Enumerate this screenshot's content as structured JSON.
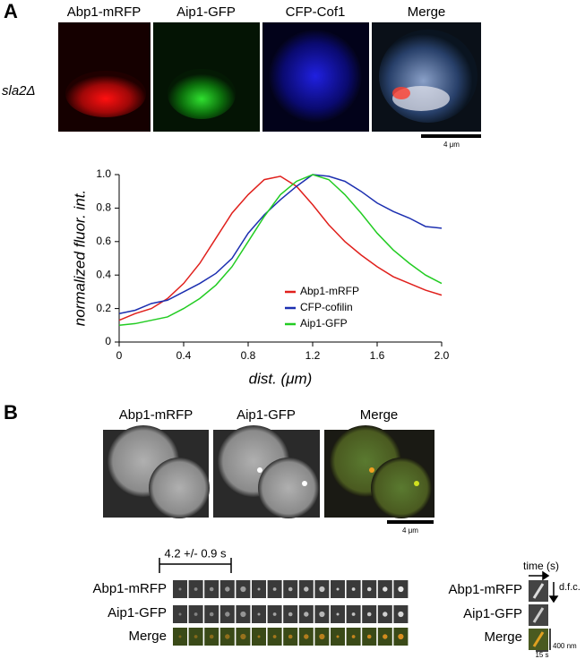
{
  "panel_a": {
    "label": "A",
    "columns": [
      "Abp1-mRFP",
      "Aip1-GFP",
      "CFP-Cof1",
      "Merge"
    ],
    "row_label": "sla2Δ",
    "scale_bar": "4 μm"
  },
  "chart_data": {
    "type": "line",
    "xlabel": "dist. (μm)",
    "ylabel": "normalized fluor. int.",
    "x": [
      0,
      0.1,
      0.2,
      0.3,
      0.4,
      0.5,
      0.6,
      0.7,
      0.8,
      0.9,
      1.0,
      1.1,
      1.2,
      1.3,
      1.4,
      1.5,
      1.6,
      1.7,
      1.8,
      1.9,
      2.0
    ],
    "series": [
      {
        "name": "Abp1-mRFP",
        "color": "#e0201c",
        "values": [
          0.13,
          0.17,
          0.2,
          0.26,
          0.35,
          0.47,
          0.62,
          0.77,
          0.88,
          0.97,
          0.99,
          0.93,
          0.82,
          0.7,
          0.6,
          0.52,
          0.45,
          0.39,
          0.35,
          0.31,
          0.28
        ]
      },
      {
        "name": "CFP-cofilin",
        "color": "#1c2fb0",
        "values": [
          0.17,
          0.19,
          0.23,
          0.25,
          0.3,
          0.35,
          0.41,
          0.5,
          0.65,
          0.76,
          0.85,
          0.93,
          1.0,
          0.99,
          0.96,
          0.9,
          0.83,
          0.78,
          0.74,
          0.69,
          0.68
        ]
      },
      {
        "name": "Aip1-GFP",
        "color": "#22cc22",
        "values": [
          0.1,
          0.11,
          0.13,
          0.15,
          0.2,
          0.26,
          0.34,
          0.45,
          0.6,
          0.75,
          0.88,
          0.96,
          1.0,
          0.97,
          0.88,
          0.77,
          0.65,
          0.55,
          0.47,
          0.4,
          0.35
        ]
      }
    ],
    "xlim": [
      0,
      2
    ],
    "xticks": [
      0,
      0.4,
      0.8,
      1.2,
      1.6,
      {
        "value": 2,
        "label": "2.0"
      }
    ],
    "ylim": [
      0,
      1
    ],
    "yticks": [
      0,
      0.2,
      0.4,
      0.6,
      0.8,
      {
        "value": 1,
        "label": "1.0"
      }
    ],
    "legend": "lower right"
  },
  "panel_b": {
    "label": "B",
    "columns": [
      "Abp1-mRFP",
      "Aip1-GFP",
      "Merge"
    ],
    "scale_bar": "4 μm",
    "interval": "4.2 +/- 0.9 s",
    "rows": [
      "Abp1-mRFP",
      "Aip1-GFP",
      "Merge"
    ],
    "kymo_rows": [
      "Abp1-mRFP",
      "Aip1-GFP",
      "Merge"
    ],
    "time_axis": "time (s)",
    "dfc": "d.f.c.",
    "scale_nm": "400 nm",
    "scale_s": "15 s"
  }
}
